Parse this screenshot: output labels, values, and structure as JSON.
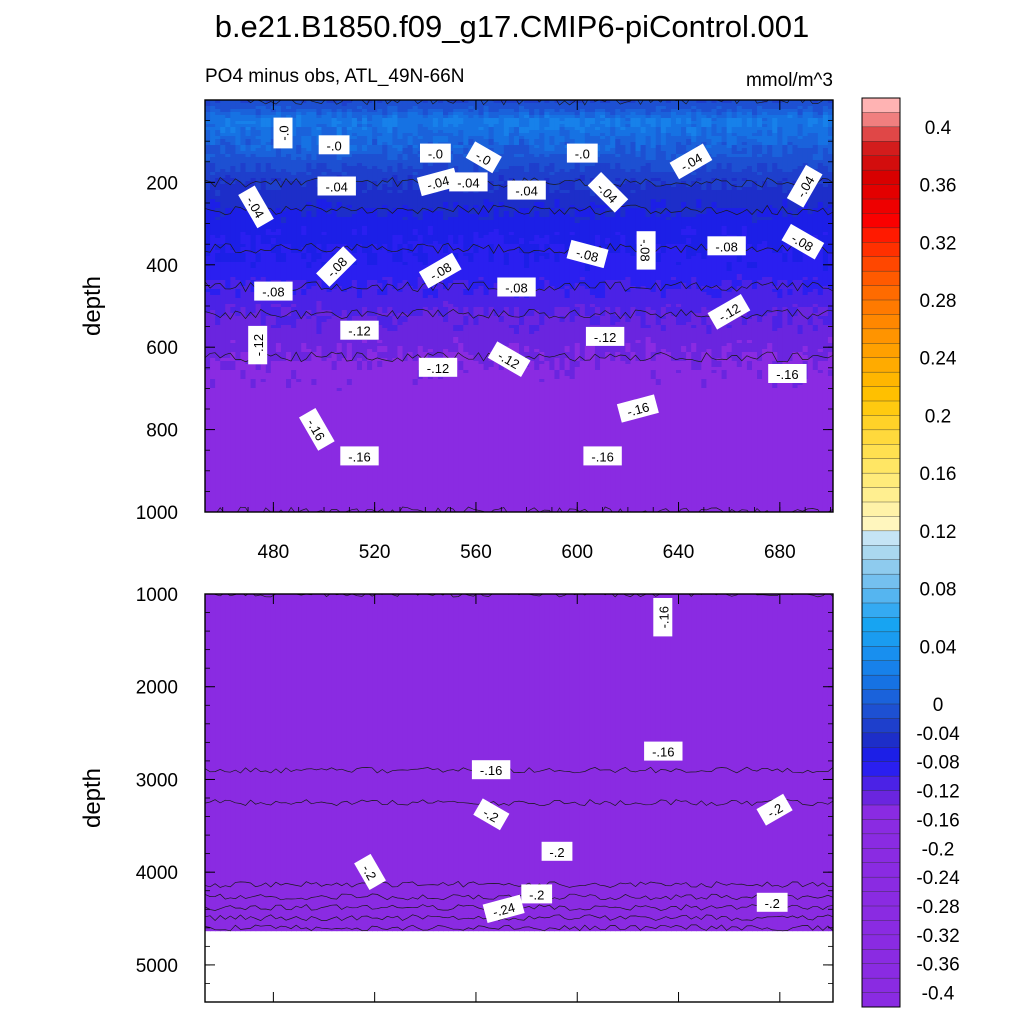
{
  "figure": {
    "title": "b.e21.B1850.f09_g17.CMIP6-piControl.001",
    "subtitle_left": "PO4 minus obs, ATL_49N-66N",
    "subtitle_right": "mmol/m^3"
  },
  "chart_data": [
    {
      "type": "heatmap",
      "panel": "upper",
      "variable": "PO4 minus obs",
      "region": "ATL_49N-66N",
      "units": "mmol/m^3",
      "xlabel": "",
      "ylabel": "depth",
      "xlim": [
        453,
        701
      ],
      "ylim": [
        1000,
        0
      ],
      "xticks": [
        "480",
        "520",
        "560",
        "600",
        "640",
        "680"
      ],
      "yticks": [
        "200",
        "400",
        "600",
        "800",
        "1000"
      ],
      "depth_profile": [
        {
          "depth": 0,
          "value": -0.02
        },
        {
          "depth": 50,
          "value": 0.02
        },
        {
          "depth": 130,
          "value": 0.0
        },
        {
          "depth": 200,
          "value": -0.04
        },
        {
          "depth": 300,
          "value": -0.07
        },
        {
          "depth": 420,
          "value": -0.09
        },
        {
          "depth": 520,
          "value": -0.12
        },
        {
          "depth": 650,
          "value": -0.145
        },
        {
          "depth": 800,
          "value": -0.155
        },
        {
          "depth": 1000,
          "value": -0.16
        }
      ],
      "contour_labels": [
        {
          "text": "-.0",
          "x": 484,
          "depth": 80
        },
        {
          "text": "-.0",
          "x": 504,
          "depth": 110
        },
        {
          "text": "-.0",
          "x": 544,
          "depth": 130
        },
        {
          "text": "-.0",
          "x": 563,
          "depth": 140
        },
        {
          "text": "-.0",
          "x": 602,
          "depth": 130
        },
        {
          "text": "-.04",
          "x": 645,
          "depth": 150
        },
        {
          "text": "-.04",
          "x": 473,
          "depth": 260
        },
        {
          "text": "-.04",
          "x": 505,
          "depth": 210
        },
        {
          "text": "-.04",
          "x": 545,
          "depth": 200
        },
        {
          "text": "-.04",
          "x": 557,
          "depth": 200
        },
        {
          "text": "-.04",
          "x": 580,
          "depth": 220
        },
        {
          "text": "-.04",
          "x": 612,
          "depth": 225
        },
        {
          "text": "-.04",
          "x": 690,
          "depth": 210
        },
        {
          "text": "-.08",
          "x": 480,
          "depth": 465
        },
        {
          "text": "-.08",
          "x": 505,
          "depth": 405
        },
        {
          "text": "-.08",
          "x": 546,
          "depth": 415
        },
        {
          "text": "-.08",
          "x": 576,
          "depth": 455
        },
        {
          "text": "-.08",
          "x": 604,
          "depth": 375
        },
        {
          "text": "-.08",
          "x": 627,
          "depth": 365
        },
        {
          "text": "-.08",
          "x": 659,
          "depth": 355
        },
        {
          "text": "-.08",
          "x": 689,
          "depth": 345
        },
        {
          "text": "-.12",
          "x": 474,
          "depth": 595
        },
        {
          "text": "-.12",
          "x": 514,
          "depth": 560
        },
        {
          "text": "-.12",
          "x": 545,
          "depth": 650
        },
        {
          "text": "-.12",
          "x": 573,
          "depth": 630
        },
        {
          "text": "-.12",
          "x": 611,
          "depth": 575
        },
        {
          "text": "-.12",
          "x": 660,
          "depth": 515
        },
        {
          "text": "-.16",
          "x": 497,
          "depth": 800
        },
        {
          "text": "-.16",
          "x": 514,
          "depth": 865
        },
        {
          "text": "-.16",
          "x": 624,
          "depth": 750
        },
        {
          "text": "-.16",
          "x": 610,
          "depth": 865
        },
        {
          "text": "-.16",
          "x": 683,
          "depth": 665
        }
      ]
    },
    {
      "type": "heatmap",
      "panel": "lower",
      "variable": "PO4 minus obs",
      "region": "ATL_49N-66N",
      "units": "mmol/m^3",
      "xlabel": "",
      "ylabel": "depth",
      "xlim": [
        453,
        701
      ],
      "ylim": [
        5400,
        1000
      ],
      "data_max_depth": 4630,
      "yticks": [
        "1000",
        "2000",
        "3000",
        "4000",
        "5000"
      ],
      "depth_profile": [
        {
          "depth": 1000,
          "value": -0.16
        },
        {
          "depth": 1800,
          "value": -0.155
        },
        {
          "depth": 2600,
          "value": -0.165
        },
        {
          "depth": 3000,
          "value": -0.185
        },
        {
          "depth": 3500,
          "value": -0.215
        },
        {
          "depth": 4000,
          "value": -0.2
        },
        {
          "depth": 4300,
          "value": -0.245
        },
        {
          "depth": 4600,
          "value": -0.3
        }
      ],
      "contour_labels": [
        {
          "text": "-.16",
          "x": 634,
          "depth": 1250
        },
        {
          "text": "-.16",
          "x": 566,
          "depth": 2900
        },
        {
          "text": "-.16",
          "x": 634,
          "depth": 2700
        },
        {
          "text": "-.2",
          "x": 566,
          "depth": 3380
        },
        {
          "text": "-.2",
          "x": 592,
          "depth": 3780
        },
        {
          "text": "-.2",
          "x": 678,
          "depth": 3330
        },
        {
          "text": "-.2",
          "x": 518,
          "depth": 4000
        },
        {
          "text": "-.2",
          "x": 584,
          "depth": 4240
        },
        {
          "text": "-.24",
          "x": 571,
          "depth": 4400
        },
        {
          "text": "-.2",
          "x": 677,
          "depth": 4330
        }
      ]
    }
  ],
  "colorbar": {
    "tick_labels": [
      "0.4",
      "0.36",
      "0.32",
      "0.28",
      "0.24",
      "0.2",
      "0.16",
      "0.12",
      "0.08",
      "0.04",
      "0",
      "-0.04",
      "-0.08",
      "-0.12",
      "-0.16",
      "-0.2",
      "-0.24",
      "-0.28",
      "-0.32",
      "-0.36",
      "-0.4"
    ],
    "levels": [
      0.42,
      0.41,
      0.4,
      0.39,
      0.38,
      0.37,
      0.36,
      0.35,
      0.34,
      0.33,
      0.32,
      0.31,
      0.3,
      0.29,
      0.28,
      0.27,
      0.26,
      0.25,
      0.24,
      0.23,
      0.22,
      0.21,
      0.2,
      0.19,
      0.18,
      0.17,
      0.16,
      0.15,
      0.14,
      0.13,
      0.12,
      0.11,
      0.1,
      0.09,
      0.08,
      0.07,
      0.06,
      0.05,
      0.04,
      0.03,
      0.02,
      0.01,
      0.0,
      -0.02,
      -0.04,
      -0.06,
      -0.08,
      -0.1,
      -0.12,
      -0.14,
      -0.16,
      -0.18,
      -0.2,
      -0.22,
      -0.24,
      -0.26,
      -0.28,
      -0.3,
      -0.32,
      -0.34,
      -0.36,
      -0.38,
      -0.4,
      -0.42
    ],
    "colors": [
      "#ffb3b3",
      "#f07f7f",
      "#e04747",
      "#d31c1c",
      "#d30d0d",
      "#d80000",
      "#e30000",
      "#ee0000",
      "#fa0000",
      "#ff1a00",
      "#ff3000",
      "#ff4700",
      "#ff5a00",
      "#ff6b00",
      "#ff7a00",
      "#ff8700",
      "#ff9400",
      "#ffa000",
      "#ffab00",
      "#ffb600",
      "#ffc000",
      "#ffca10",
      "#ffd228",
      "#ffd93c",
      "#ffe050",
      "#ffe664",
      "#ffeb7a",
      "#ffef90",
      "#fff2a8",
      "#fff6be",
      "#c5e4f5",
      "#aad8ef",
      "#8ecbee",
      "#74c0ef",
      "#55b5f0",
      "#34aaf2",
      "#17a4f2",
      "#1a9cf0",
      "#188fef",
      "#1781ea",
      "#1672e3",
      "#1a62db",
      "#1d50d2",
      "#1e3fcc",
      "#1d2ec9",
      "#1c1fe7",
      "#2a1ff0",
      "#4b22e6",
      "#6a25df",
      "#8a2be2",
      "#8a2be2",
      "#8a2be2",
      "#8a2be2",
      "#8a2be2",
      "#8a2be2",
      "#8a2be2",
      "#8a2be2",
      "#8a2be2",
      "#8a2be2",
      "#8a2be2",
      "#8a2be2",
      "#8a2be2",
      "#8a2be2"
    ]
  }
}
